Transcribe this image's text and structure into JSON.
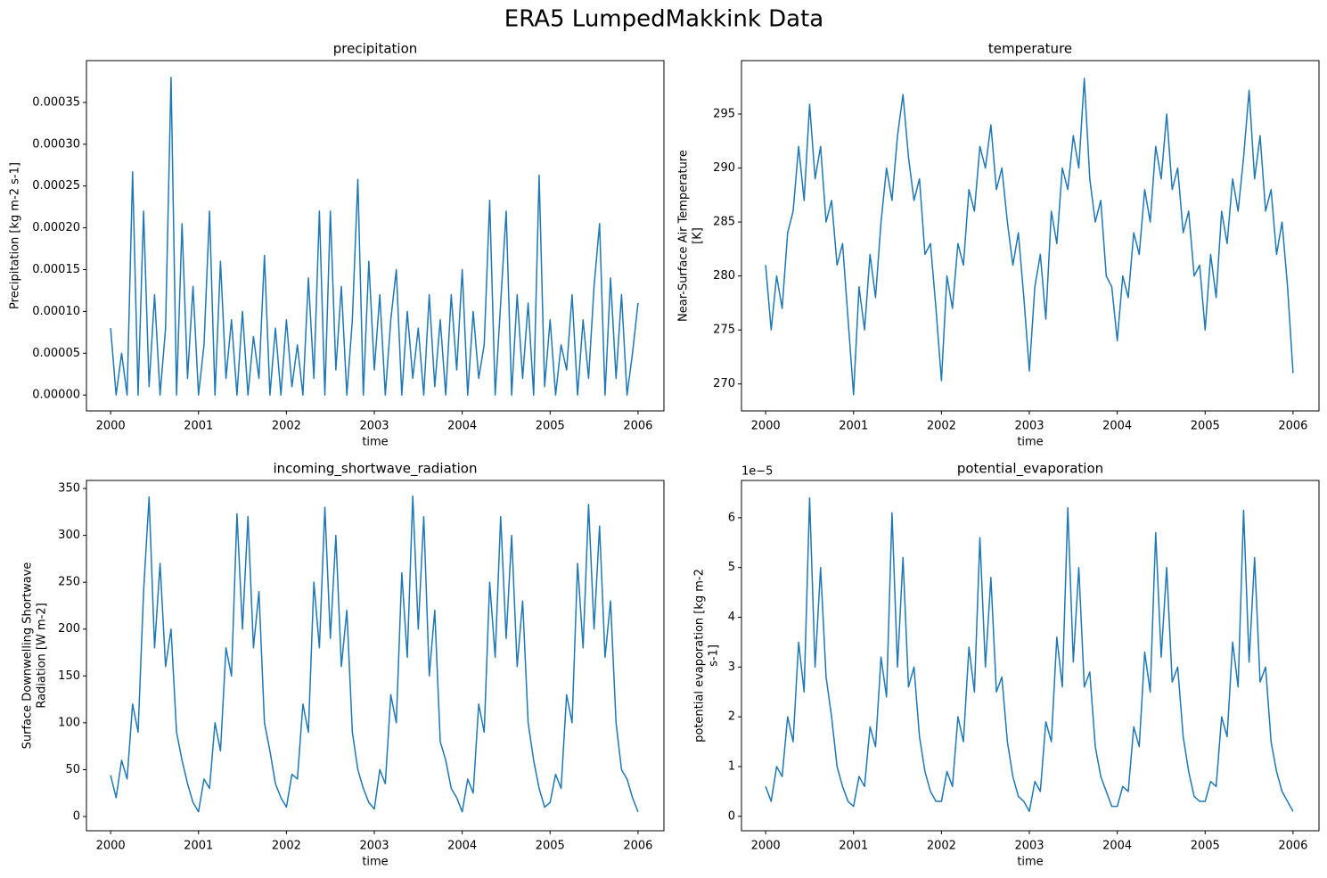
{
  "title": "ERA5 LumpedMakkink Data",
  "chart_data": [
    {
      "type": "line",
      "title": "precipitation",
      "xlabel": "time",
      "ylabel": [
        "Precipitation [kg m-2 s-1]"
      ],
      "color": "#1f77b4",
      "x": [
        2000,
        2000.0625,
        2000.125,
        2000.1875,
        2000.25,
        2000.3125,
        2000.375,
        2000.4375,
        2000.5,
        2000.5625,
        2000.625,
        2000.6875,
        2000.75,
        2000.8125,
        2000.875,
        2000.9375,
        2001,
        2001.0625,
        2001.125,
        2001.1875,
        2001.25,
        2001.3125,
        2001.375,
        2001.4375,
        2001.5,
        2001.5625,
        2001.625,
        2001.6875,
        2001.75,
        2001.8125,
        2001.875,
        2001.9375,
        2002,
        2002.0625,
        2002.125,
        2002.1875,
        2002.25,
        2002.3125,
        2002.375,
        2002.4375,
        2002.5,
        2002.5625,
        2002.625,
        2002.6875,
        2002.75,
        2002.8125,
        2002.875,
        2002.9375,
        2003,
        2003.0625,
        2003.125,
        2003.1875,
        2003.25,
        2003.3125,
        2003.375,
        2003.4375,
        2003.5,
        2003.5625,
        2003.625,
        2003.6875,
        2003.75,
        2003.8125,
        2003.875,
        2003.9375,
        2004,
        2004.0625,
        2004.125,
        2004.1875,
        2004.25,
        2004.3125,
        2004.375,
        2004.4375,
        2004.5,
        2004.5625,
        2004.625,
        2004.6875,
        2004.75,
        2004.8125,
        2004.875,
        2004.9375,
        2005,
        2005.0625,
        2005.125,
        2005.1875,
        2005.25,
        2005.3125,
        2005.375,
        2005.4375,
        2005.5,
        2005.5625,
        2005.625,
        2005.6875,
        2005.75,
        2005.8125,
        2005.875,
        2005.9375,
        2006
      ],
      "values": [
        8e-05,
        0,
        5e-05,
        0,
        0.000267,
        0,
        0.00022,
        1e-05,
        0.00012,
        0,
        8e-05,
        0.00038,
        0,
        0.000205,
        2e-05,
        0.00013,
        0,
        6e-05,
        0.00022,
        0,
        0.00016,
        2e-05,
        9e-05,
        0,
        0.0001,
        0,
        7e-05,
        2e-05,
        0.000167,
        0,
        8e-05,
        0,
        9e-05,
        1e-05,
        6e-05,
        0,
        0.00014,
        2e-05,
        0.00022,
        0,
        0.00022,
        3e-05,
        0.00013,
        0,
        9e-05,
        0.000258,
        0,
        0.00016,
        3e-05,
        0.00012,
        0,
        9e-05,
        0.00015,
        0,
        0.0001,
        2e-05,
        8e-05,
        0,
        0.00012,
        1e-05,
        9e-05,
        0,
        0.00012,
        3e-05,
        0.00015,
        0,
        0.0001,
        2e-05,
        6e-05,
        0.000233,
        0,
        0.00011,
        0.00022,
        0,
        0.00012,
        2e-05,
        0.00011,
        0,
        0.000263,
        1e-05,
        9e-05,
        0,
        6e-05,
        3e-05,
        0.00012,
        0,
        9e-05,
        2e-05,
        0.00013,
        0.000205,
        0,
        0.00014,
        2e-05,
        0.00012,
        0,
        5e-05,
        0.00011
      ],
      "xlim": [
        1999.725,
        2006.295
      ],
      "xticks": [
        2000,
        2001,
        2002,
        2003,
        2004,
        2005,
        2006
      ],
      "ylim": [
        -1.9e-05,
        0.0004
      ],
      "yticks": [
        {
          "value": 0,
          "label": "0.00000"
        },
        {
          "value": 5e-05,
          "label": "0.00005"
        },
        {
          "value": 0.0001,
          "label": "0.00010"
        },
        {
          "value": 0.00015,
          "label": "0.00015"
        },
        {
          "value": 0.0002,
          "label": "0.00020"
        },
        {
          "value": 0.00025,
          "label": "0.00025"
        },
        {
          "value": 0.0003,
          "label": "0.00030"
        },
        {
          "value": 0.00035,
          "label": "0.00035"
        }
      ]
    },
    {
      "type": "line",
      "title": "temperature",
      "xlabel": "time",
      "ylabel": [
        "Near-Surface Air Temperature",
        "[K]"
      ],
      "color": "#1f77b4",
      "x": [
        2000,
        2000.0625,
        2000.125,
        2000.1875,
        2000.25,
        2000.3125,
        2000.375,
        2000.4375,
        2000.5,
        2000.5625,
        2000.625,
        2000.6875,
        2000.75,
        2000.8125,
        2000.875,
        2000.9375,
        2001,
        2001.0625,
        2001.125,
        2001.1875,
        2001.25,
        2001.3125,
        2001.375,
        2001.4375,
        2001.5,
        2001.5625,
        2001.625,
        2001.6875,
        2001.75,
        2001.8125,
        2001.875,
        2001.9375,
        2002,
        2002.0625,
        2002.125,
        2002.1875,
        2002.25,
        2002.3125,
        2002.375,
        2002.4375,
        2002.5,
        2002.5625,
        2002.625,
        2002.6875,
        2002.75,
        2002.8125,
        2002.875,
        2002.9375,
        2003,
        2003.0625,
        2003.125,
        2003.1875,
        2003.25,
        2003.3125,
        2003.375,
        2003.4375,
        2003.5,
        2003.5625,
        2003.625,
        2003.6875,
        2003.75,
        2003.8125,
        2003.875,
        2003.9375,
        2004,
        2004.0625,
        2004.125,
        2004.1875,
        2004.25,
        2004.3125,
        2004.375,
        2004.4375,
        2004.5,
        2004.5625,
        2004.625,
        2004.6875,
        2004.75,
        2004.8125,
        2004.875,
        2004.9375,
        2005,
        2005.0625,
        2005.125,
        2005.1875,
        2005.25,
        2005.3125,
        2005.375,
        2005.4375,
        2005.5,
        2005.5625,
        2005.625,
        2005.6875,
        2005.75,
        2005.8125,
        2005.875,
        2005.9375,
        2006
      ],
      "values": [
        281,
        275,
        280,
        277,
        284,
        286,
        292,
        287,
        295.9,
        289,
        292,
        285,
        287,
        281,
        283,
        276,
        269,
        279,
        275,
        282,
        278,
        285,
        290,
        287,
        293,
        296.8,
        291,
        287,
        289,
        282,
        283,
        277,
        270.3,
        280,
        277,
        283,
        281,
        288,
        286,
        292,
        290,
        294,
        288,
        290,
        285,
        281,
        284,
        278,
        271.2,
        279,
        282,
        276,
        286,
        283,
        290,
        288,
        293,
        290,
        298.3,
        289,
        285,
        287,
        280,
        279,
        274,
        280,
        278,
        284,
        282,
        288,
        285,
        292,
        289,
        295,
        288,
        290,
        284,
        286,
        280,
        281,
        275,
        282,
        278,
        286,
        283,
        289,
        286,
        291,
        297.2,
        289,
        293,
        286,
        288,
        282,
        285,
        279,
        271
      ],
      "xlim": [
        1999.725,
        2006.295
      ],
      "xticks": [
        2000,
        2001,
        2002,
        2003,
        2004,
        2005,
        2006
      ],
      "ylim": [
        267.5,
        299.95
      ],
      "yticks": [
        270,
        275,
        280,
        285,
        290,
        295
      ]
    },
    {
      "type": "line",
      "title": "incoming_shortwave_radiation",
      "xlabel": "time",
      "ylabel": [
        "Surface Downwelling Shortwave",
        "Radiation [W m-2]"
      ],
      "color": "#1f77b4",
      "x": [
        2000,
        2000.0625,
        2000.125,
        2000.1875,
        2000.25,
        2000.3125,
        2000.375,
        2000.4375,
        2000.5,
        2000.5625,
        2000.625,
        2000.6875,
        2000.75,
        2000.8125,
        2000.875,
        2000.9375,
        2001,
        2001.0625,
        2001.125,
        2001.1875,
        2001.25,
        2001.3125,
        2001.375,
        2001.4375,
        2001.5,
        2001.5625,
        2001.625,
        2001.6875,
        2001.75,
        2001.8125,
        2001.875,
        2001.9375,
        2002,
        2002.0625,
        2002.125,
        2002.1875,
        2002.25,
        2002.3125,
        2002.375,
        2002.4375,
        2002.5,
        2002.5625,
        2002.625,
        2002.6875,
        2002.75,
        2002.8125,
        2002.875,
        2002.9375,
        2003,
        2003.0625,
        2003.125,
        2003.1875,
        2003.25,
        2003.3125,
        2003.375,
        2003.4375,
        2003.5,
        2003.5625,
        2003.625,
        2003.6875,
        2003.75,
        2003.8125,
        2003.875,
        2003.9375,
        2004,
        2004.0625,
        2004.125,
        2004.1875,
        2004.25,
        2004.3125,
        2004.375,
        2004.4375,
        2004.5,
        2004.5625,
        2004.625,
        2004.6875,
        2004.75,
        2004.8125,
        2004.875,
        2004.9375,
        2005,
        2005.0625,
        2005.125,
        2005.1875,
        2005.25,
        2005.3125,
        2005.375,
        2005.4375,
        2005.5,
        2005.5625,
        2005.625,
        2005.6875,
        2005.75,
        2005.8125,
        2005.875,
        2005.9375,
        2006
      ],
      "values": [
        44,
        20,
        60,
        40,
        120,
        90,
        240,
        341,
        180,
        270,
        160,
        200,
        90,
        60,
        35,
        15,
        5,
        40,
        30,
        100,
        70,
        180,
        150,
        323,
        200,
        320,
        180,
        240,
        100,
        70,
        35,
        20,
        10,
        45,
        40,
        120,
        90,
        250,
        180,
        330,
        190,
        300,
        160,
        220,
        90,
        50,
        30,
        15,
        8,
        50,
        35,
        130,
        100,
        260,
        170,
        342,
        200,
        320,
        150,
        220,
        80,
        60,
        30,
        20,
        5,
        40,
        25,
        120,
        90,
        250,
        170,
        320,
        190,
        300,
        160,
        230,
        100,
        60,
        30,
        10,
        15,
        45,
        30,
        130,
        100,
        270,
        180,
        333,
        200,
        310,
        170,
        230,
        100,
        50,
        40,
        20,
        5
      ],
      "xlim": [
        1999.725,
        2006.295
      ],
      "xticks": [
        2000,
        2001,
        2002,
        2003,
        2004,
        2005,
        2006
      ],
      "ylim": [
        -15.2,
        358.6
      ],
      "yticks": [
        0,
        50,
        100,
        150,
        200,
        250,
        300,
        350
      ]
    },
    {
      "type": "line",
      "title": "potential_evaporation",
      "xlabel": "time",
      "ylabel": [
        "potential evaporation [kg m-2",
        "s-1]"
      ],
      "y_offset_label": "1e−5",
      "color": "#1f77b4",
      "x": [
        2000,
        2000.0625,
        2000.125,
        2000.1875,
        2000.25,
        2000.3125,
        2000.375,
        2000.4375,
        2000.5,
        2000.5625,
        2000.625,
        2000.6875,
        2000.75,
        2000.8125,
        2000.875,
        2000.9375,
        2001,
        2001.0625,
        2001.125,
        2001.1875,
        2001.25,
        2001.3125,
        2001.375,
        2001.4375,
        2001.5,
        2001.5625,
        2001.625,
        2001.6875,
        2001.75,
        2001.8125,
        2001.875,
        2001.9375,
        2002,
        2002.0625,
        2002.125,
        2002.1875,
        2002.25,
        2002.3125,
        2002.375,
        2002.4375,
        2002.5,
        2002.5625,
        2002.625,
        2002.6875,
        2002.75,
        2002.8125,
        2002.875,
        2002.9375,
        2003,
        2003.0625,
        2003.125,
        2003.1875,
        2003.25,
        2003.3125,
        2003.375,
        2003.4375,
        2003.5,
        2003.5625,
        2003.625,
        2003.6875,
        2003.75,
        2003.8125,
        2003.875,
        2003.9375,
        2004,
        2004.0625,
        2004.125,
        2004.1875,
        2004.25,
        2004.3125,
        2004.375,
        2004.4375,
        2004.5,
        2004.5625,
        2004.625,
        2004.6875,
        2004.75,
        2004.8125,
        2004.875,
        2004.9375,
        2005,
        2005.0625,
        2005.125,
        2005.1875,
        2005.25,
        2005.3125,
        2005.375,
        2005.4375,
        2005.5,
        2005.5625,
        2005.625,
        2005.6875,
        2005.75,
        2005.8125,
        2005.875,
        2005.9375,
        2006
      ],
      "values": [
        0.6,
        0.3,
        1.0,
        0.8,
        2.0,
        1.5,
        3.5,
        2.5,
        6.4,
        3.0,
        5.0,
        2.8,
        2.0,
        1.0,
        0.6,
        0.3,
        0.2,
        0.8,
        0.6,
        1.8,
        1.4,
        3.2,
        2.4,
        6.1,
        3.0,
        5.2,
        2.6,
        3.0,
        1.6,
        0.9,
        0.5,
        0.3,
        0.3,
        0.9,
        0.6,
        2.0,
        1.5,
        3.4,
        2.5,
        5.6,
        3.0,
        4.8,
        2.5,
        2.8,
        1.5,
        0.8,
        0.4,
        0.3,
        0.1,
        0.7,
        0.5,
        1.9,
        1.5,
        3.6,
        2.6,
        6.2,
        3.1,
        5.0,
        2.6,
        2.9,
        1.4,
        0.8,
        0.5,
        0.2,
        0.2,
        0.6,
        0.5,
        1.8,
        1.4,
        3.3,
        2.5,
        5.7,
        3.2,
        5.0,
        2.7,
        3.0,
        1.6,
        0.9,
        0.4,
        0.3,
        0.3,
        0.7,
        0.6,
        2.0,
        1.6,
        3.5,
        2.6,
        6.15,
        3.1,
        5.2,
        2.7,
        3.0,
        1.5,
        0.9,
        0.5,
        0.3,
        0.1
      ],
      "xlim": [
        1999.725,
        2006.295
      ],
      "xticks": [
        2000,
        2001,
        2002,
        2003,
        2004,
        2005,
        2006
      ],
      "ylim": [
        -0.29,
        6.75
      ],
      "yticks": [
        0,
        1,
        2,
        3,
        4,
        5,
        6
      ]
    }
  ]
}
